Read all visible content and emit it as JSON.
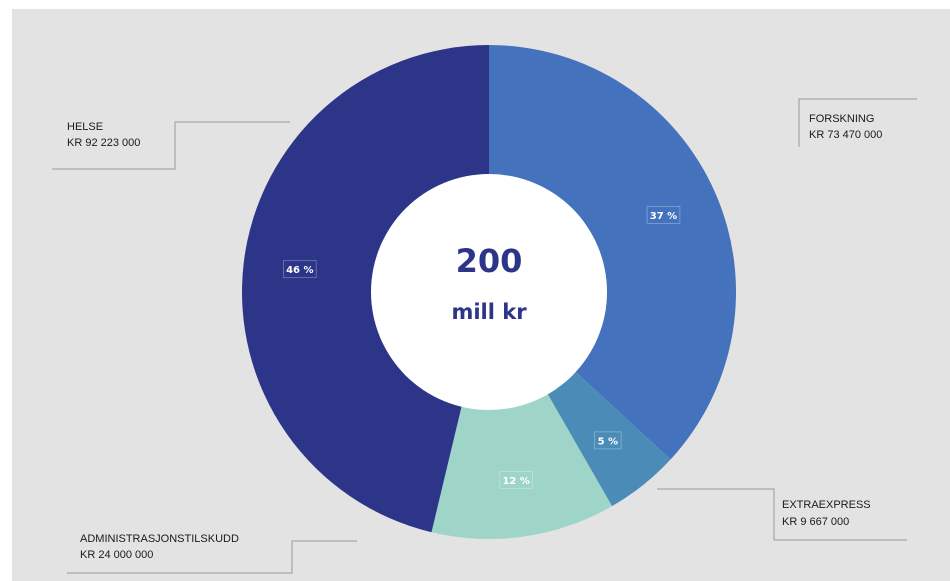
{
  "chart_data": {
    "type": "pie",
    "style": "donut",
    "center": {
      "value": "200",
      "unit": "mill kr"
    },
    "slices": [
      {
        "name": "FORSKNING",
        "amount": "KR 73 470 000",
        "value": 73470000,
        "percent_label": "37 %",
        "color": "#4472bc"
      },
      {
        "name": "EXTRAEXPRESS",
        "amount": "KR 9 667 000",
        "value": 9667000,
        "percent_label": "5 %",
        "color": "#4a8bb8"
      },
      {
        "name": "ADMINISTRASJONSTILSKUDD",
        "amount": "KR 24 000 000",
        "value": 24000000,
        "percent_label": "12 %",
        "color": "#9fd5c9"
      },
      {
        "name": "HELSE",
        "amount": "KR 92 223 000",
        "value": 92223000,
        "percent_label": "46 %",
        "color": "#2c3588"
      }
    ]
  },
  "colors": {
    "background": "#e3e3e3",
    "center_text": "#2c3587",
    "leader_line": "#9a9a9a"
  }
}
